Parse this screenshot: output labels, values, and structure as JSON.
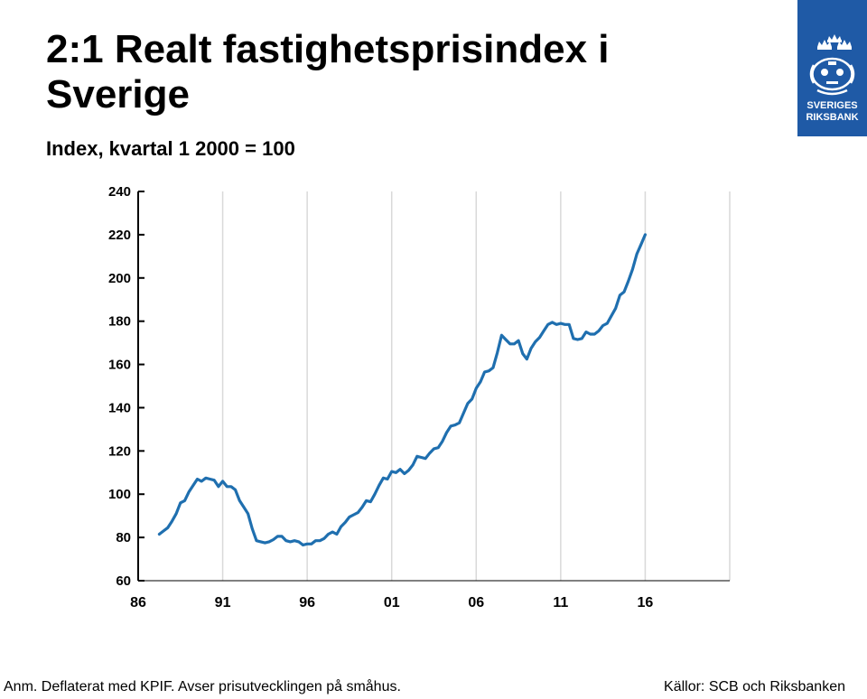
{
  "title": "2:1 Realt fastighetsprisindex i Sverige",
  "subtitle": "Index, kvartal 1 2000 = 100",
  "logo": {
    "line1": "SVERIGES",
    "line2": "RIKSBANK",
    "color": "#1f5aa6"
  },
  "footer": {
    "note": "Anm. Deflaterat med KPIF. Avser prisutvecklingen på småhus.",
    "source": "Källor: SCB och Riksbanken"
  },
  "chart_data": {
    "type": "line",
    "title": "2:1 Realt fastighetsprisindex i Sverige",
    "ylabel": "Index, kvartal 1 2000 = 100",
    "xlim": [
      1986,
      2021
    ],
    "ylim": [
      60,
      240
    ],
    "yticks": [
      60,
      80,
      100,
      120,
      140,
      160,
      180,
      200,
      220,
      240
    ],
    "xticks": [
      1986,
      1991,
      1996,
      2001,
      2006,
      2011,
      2016
    ],
    "xtick_labels": [
      "86",
      "91",
      "96",
      "01",
      "06",
      "11",
      "16"
    ],
    "grid": "vertical",
    "line_color": "#1f6faf",
    "series": [
      {
        "name": "",
        "points": [
          [
            1987.25,
            81.5
          ],
          [
            1987.5,
            83
          ],
          [
            1987.75,
            84.5
          ],
          [
            1988.0,
            87.5
          ],
          [
            1988.25,
            91
          ],
          [
            1988.5,
            96
          ],
          [
            1988.75,
            97
          ],
          [
            1989.0,
            101
          ],
          [
            1989.25,
            104
          ],
          [
            1989.5,
            107
          ],
          [
            1989.75,
            106
          ],
          [
            1990.0,
            107.5
          ],
          [
            1990.25,
            107
          ],
          [
            1990.5,
            106.5
          ],
          [
            1990.75,
            103.5
          ],
          [
            1991.0,
            106
          ],
          [
            1991.25,
            103.5
          ],
          [
            1991.5,
            103.5
          ],
          [
            1991.75,
            102
          ],
          [
            1992.0,
            97
          ],
          [
            1992.25,
            94
          ],
          [
            1992.5,
            91
          ],
          [
            1992.75,
            84
          ],
          [
            1993.0,
            78.5
          ],
          [
            1993.25,
            78
          ],
          [
            1993.5,
            77.5
          ],
          [
            1993.75,
            78
          ],
          [
            1994.0,
            79
          ],
          [
            1994.25,
            80.5
          ],
          [
            1994.5,
            80.5
          ],
          [
            1994.75,
            78.5
          ],
          [
            1995.0,
            78
          ],
          [
            1995.25,
            78.5
          ],
          [
            1995.5,
            78
          ],
          [
            1995.75,
            76.5
          ],
          [
            1996.0,
            77
          ],
          [
            1996.25,
            77
          ],
          [
            1996.5,
            78.5
          ],
          [
            1996.75,
            78.5
          ],
          [
            1997.0,
            79.5
          ],
          [
            1997.25,
            81.5
          ],
          [
            1997.5,
            82.5
          ],
          [
            1997.75,
            81.5
          ],
          [
            1998.0,
            85
          ],
          [
            1998.25,
            87
          ],
          [
            1998.5,
            89.5
          ],
          [
            1998.75,
            90.5
          ],
          [
            1999.0,
            91.5
          ],
          [
            1999.25,
            94
          ],
          [
            1999.5,
            97
          ],
          [
            1999.75,
            96.5
          ],
          [
            2000.0,
            100
          ],
          [
            2000.25,
            104
          ],
          [
            2000.5,
            107.5
          ],
          [
            2000.75,
            107
          ],
          [
            2001.0,
            110.5
          ],
          [
            2001.25,
            110
          ],
          [
            2001.5,
            111.5
          ],
          [
            2001.75,
            109.5
          ],
          [
            2002.0,
            111
          ],
          [
            2002.25,
            113.5
          ],
          [
            2002.5,
            117.5
          ],
          [
            2002.75,
            117
          ],
          [
            2003.0,
            116.5
          ],
          [
            2003.25,
            119
          ],
          [
            2003.5,
            121
          ],
          [
            2003.75,
            121.5
          ],
          [
            2004.0,
            124.5
          ],
          [
            2004.25,
            128.5
          ],
          [
            2004.5,
            131.5
          ],
          [
            2004.75,
            132
          ],
          [
            2005.0,
            133
          ],
          [
            2005.25,
            137.5
          ],
          [
            2005.5,
            142
          ],
          [
            2005.75,
            144
          ],
          [
            2006.0,
            149
          ],
          [
            2006.25,
            152
          ],
          [
            2006.5,
            156.5
          ],
          [
            2006.75,
            157
          ],
          [
            2007.0,
            158.5
          ],
          [
            2007.25,
            165.5
          ],
          [
            2007.5,
            173.5
          ],
          [
            2007.75,
            171.5
          ],
          [
            2008.0,
            169.5
          ],
          [
            2008.25,
            169.5
          ],
          [
            2008.5,
            171
          ],
          [
            2008.75,
            165
          ],
          [
            2009.0,
            162.5
          ],
          [
            2009.25,
            167.5
          ],
          [
            2009.5,
            170.5
          ],
          [
            2009.75,
            172.5
          ],
          [
            2010.0,
            175.5
          ],
          [
            2010.25,
            178.5
          ],
          [
            2010.5,
            179.5
          ],
          [
            2010.75,
            178.5
          ],
          [
            2011.0,
            179
          ],
          [
            2011.25,
            178.5
          ],
          [
            2011.5,
            178.5
          ],
          [
            2011.75,
            172
          ],
          [
            2012.0,
            171.5
          ],
          [
            2012.25,
            172
          ],
          [
            2012.5,
            175
          ],
          [
            2012.75,
            174
          ],
          [
            2013.0,
            174
          ],
          [
            2013.25,
            175.5
          ],
          [
            2013.5,
            178
          ],
          [
            2013.75,
            179
          ],
          [
            2014.0,
            182.5
          ],
          [
            2014.25,
            186
          ],
          [
            2014.5,
            192
          ],
          [
            2014.75,
            193.5
          ],
          [
            2015.0,
            198.5
          ],
          [
            2015.25,
            204
          ],
          [
            2015.5,
            211
          ],
          [
            2015.75,
            215.5
          ],
          [
            2016.0,
            220
          ]
        ]
      }
    ]
  }
}
